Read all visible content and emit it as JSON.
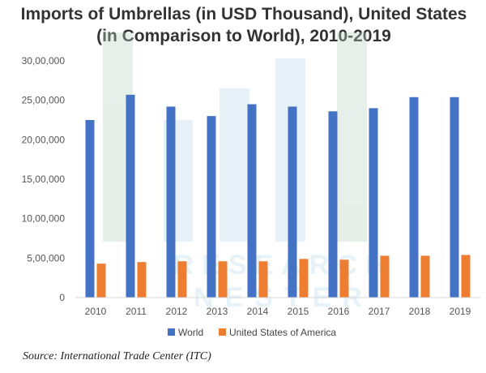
{
  "chart_data": {
    "type": "bar",
    "title": "Imports of Umbrellas (in USD Thousand), United States (in Comparison to World), 2010-2019",
    "xlabel": "",
    "ylabel": "",
    "categories": [
      "2010",
      "2011",
      "2012",
      "2013",
      "2014",
      "2015",
      "2016",
      "2017",
      "2018",
      "2019"
    ],
    "series": [
      {
        "name": "World",
        "color": "#4472C4",
        "values": [
          2250000,
          2570000,
          2420000,
          2300000,
          2450000,
          2420000,
          2360000,
          2400000,
          2540000,
          2540000
        ]
      },
      {
        "name": "United States of America",
        "color": "#ED7D31",
        "values": [
          430000,
          450000,
          460000,
          460000,
          460000,
          490000,
          480000,
          530000,
          530000,
          540000
        ]
      }
    ],
    "ylim": [
      0,
      3000000
    ],
    "yticks": [
      0,
      500000,
      1000000,
      1500000,
      2000000,
      2500000,
      3000000
    ],
    "ytick_labels": [
      "0",
      "5,00,000",
      "10,00,000",
      "15,00,000",
      "20,00,000",
      "25,00,000",
      "30,00,000"
    ],
    "grid": false,
    "legend": "bottom"
  },
  "title_lines": [
    "Imports of Umbrellas (in USD Thousand), United States",
    "(in Comparison to World), 2010-2019"
  ],
  "source": "Source: International Trade Center (ITC)",
  "watermark": [
    "RESEARCH",
    "NESTER"
  ]
}
